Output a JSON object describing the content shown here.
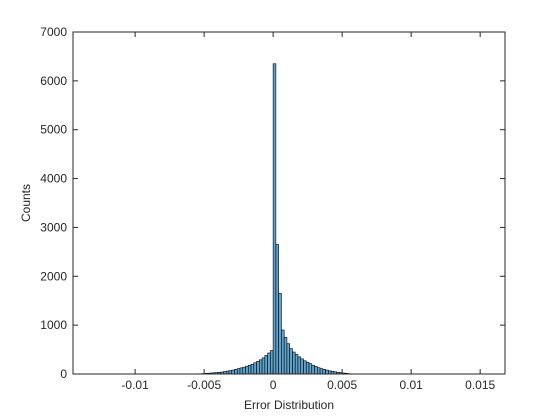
{
  "chart_data": {
    "type": "histogram",
    "xlabel": "Error Distribution",
    "ylabel": "Counts",
    "bins": [
      -0.0056,
      -0.0054,
      -0.0052,
      -0.005,
      -0.0048,
      -0.0046,
      -0.0044,
      -0.0042,
      -0.004,
      -0.0038,
      -0.0036,
      -0.0034,
      -0.0032,
      -0.003,
      -0.0028,
      -0.0026,
      -0.0024,
      -0.0022,
      -0.002,
      -0.0018,
      -0.0016,
      -0.0014,
      -0.0012,
      -0.001,
      -0.0008,
      -0.0006,
      -0.0004,
      -0.0002,
      0,
      0.0002,
      0.0004,
      0.0006,
      0.0008,
      0.001,
      0.0012,
      0.0014,
      0.0016,
      0.0018,
      0.002,
      0.0022,
      0.0024,
      0.0026,
      0.0028,
      0.003,
      0.0032,
      0.0034,
      0.0036,
      0.0038,
      0.004,
      0.0042,
      0.0044,
      0.0046,
      0.0048,
      0.005,
      0.0052,
      0.0054,
      0.0056,
      0.0058
    ],
    "values": [
      2,
      5,
      8,
      12,
      15,
      20,
      25,
      30,
      35,
      40,
      50,
      60,
      70,
      80,
      95,
      110,
      125,
      140,
      160,
      180,
      200,
      230,
      260,
      290,
      330,
      380,
      430,
      480,
      6350,
      2650,
      1650,
      900,
      750,
      620,
      520,
      450,
      400,
      350,
      310,
      270,
      240,
      210,
      180,
      155,
      130,
      110,
      95,
      80,
      65,
      55,
      45,
      35,
      28,
      20,
      14,
      8,
      4
    ],
    "color": "#5fa3cf",
    "edgecolor": "#000000",
    "xlim": [
      -0.0145,
      0.0168
    ],
    "ylim": [
      0,
      7000
    ],
    "xticks": [
      -0.01,
      -0.005,
      0,
      0.005,
      0.01,
      0.015
    ],
    "yticks": [
      0,
      1000,
      2000,
      3000,
      4000,
      5000,
      6000,
      7000
    ]
  }
}
